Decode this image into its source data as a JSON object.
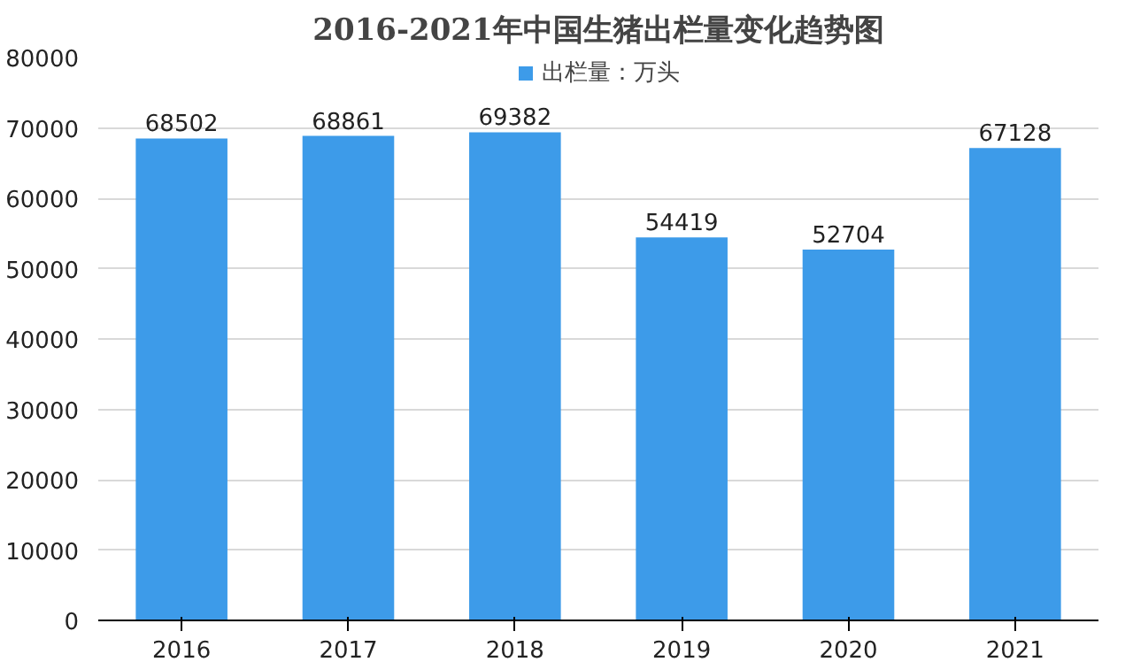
{
  "chart_data": {
    "type": "bar",
    "title": "2016-2021年中国生猪出栏量变化趋势图",
    "categories": [
      "2016",
      "2017",
      "2018",
      "2019",
      "2020",
      "2021"
    ],
    "series": [
      {
        "name": "出栏量：万头",
        "color": "#3d9be9",
        "values": [
          68502,
          68861,
          69382,
          54419,
          52704,
          67128
        ]
      }
    ],
    "ylim": [
      0,
      80000
    ],
    "yticks": [
      0,
      10000,
      20000,
      30000,
      40000,
      50000,
      60000,
      70000,
      80000
    ],
    "grid": "y",
    "legend": "top",
    "data_labels": true
  }
}
